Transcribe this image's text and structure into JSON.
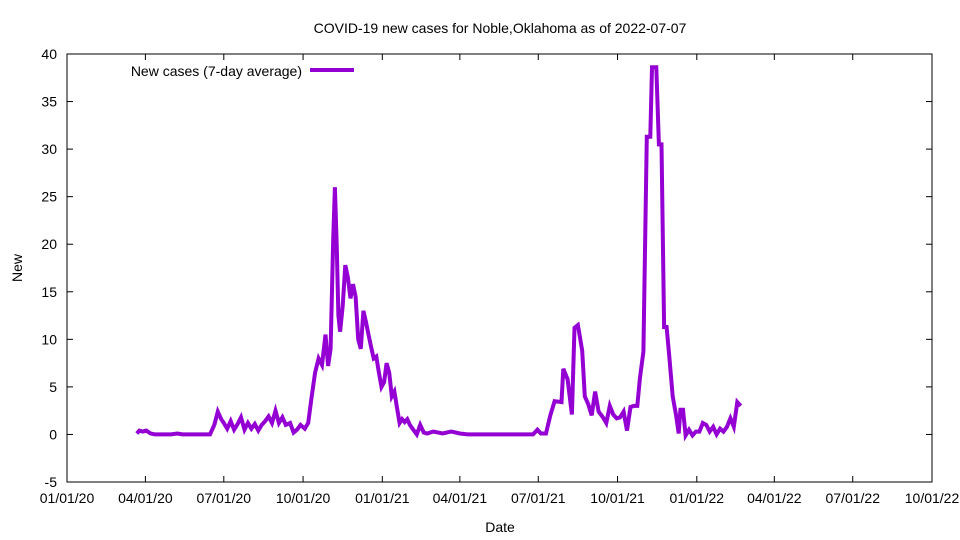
{
  "chart_data": {
    "type": "line",
    "title": "COVID-19 new cases for Noble,Oklahoma as of 2022-07-07",
    "xlabel": "Date",
    "ylabel": "New",
    "grid": false,
    "legend_position": "top-left",
    "x_axis": {
      "type": "time",
      "range": [
        "2020-01-01",
        "2022-10-01"
      ],
      "ticks": [
        {
          "date": "2020-01-01",
          "label": "01/01/20"
        },
        {
          "date": "2020-04-01",
          "label": "04/01/20"
        },
        {
          "date": "2020-07-01",
          "label": "07/01/20"
        },
        {
          "date": "2020-10-01",
          "label": "10/01/20"
        },
        {
          "date": "2021-01-01",
          "label": "01/01/21"
        },
        {
          "date": "2021-04-01",
          "label": "04/01/21"
        },
        {
          "date": "2021-07-01",
          "label": "07/01/21"
        },
        {
          "date": "2021-10-01",
          "label": "10/01/21"
        },
        {
          "date": "2022-01-01",
          "label": "01/01/22"
        },
        {
          "date": "2022-04-01",
          "label": "04/01/22"
        },
        {
          "date": "2022-07-01",
          "label": "07/01/22"
        },
        {
          "date": "2022-10-01",
          "label": "10/01/22"
        }
      ]
    },
    "y_axis": {
      "range": [
        -5,
        40
      ],
      "ticks": [
        {
          "value": -5,
          "label": "-5"
        },
        {
          "value": 0,
          "label": "0"
        },
        {
          "value": 5,
          "label": "5"
        },
        {
          "value": 10,
          "label": "10"
        },
        {
          "value": 15,
          "label": "15"
        },
        {
          "value": 20,
          "label": "20"
        },
        {
          "value": 25,
          "label": "25"
        },
        {
          "value": 30,
          "label": "30"
        },
        {
          "value": 35,
          "label": "35"
        },
        {
          "value": 40,
          "label": "40"
        }
      ]
    },
    "series": [
      {
        "name": "New cases (7-day average)",
        "color": "#9400d3",
        "points": [
          [
            "2020-03-22",
            0.1
          ],
          [
            "2020-03-25",
            0.4
          ],
          [
            "2020-03-29",
            0.3
          ],
          [
            "2020-04-02",
            0.4
          ],
          [
            "2020-04-07",
            0.1
          ],
          [
            "2020-04-12",
            0.0
          ],
          [
            "2020-05-01",
            0.0
          ],
          [
            "2020-05-08",
            0.1
          ],
          [
            "2020-05-14",
            0.0
          ],
          [
            "2020-06-15",
            0.0
          ],
          [
            "2020-06-20",
            1.0
          ],
          [
            "2020-06-24",
            2.4
          ],
          [
            "2020-06-28",
            1.6
          ],
          [
            "2020-07-01",
            1.2
          ],
          [
            "2020-07-05",
            0.6
          ],
          [
            "2020-07-09",
            1.4
          ],
          [
            "2020-07-13",
            0.5
          ],
          [
            "2020-07-17",
            1.1
          ],
          [
            "2020-07-21",
            1.8
          ],
          [
            "2020-07-25",
            0.5
          ],
          [
            "2020-07-29",
            1.2
          ],
          [
            "2020-08-02",
            0.6
          ],
          [
            "2020-08-06",
            1.1
          ],
          [
            "2020-08-10",
            0.4
          ],
          [
            "2020-08-14",
            1.0
          ],
          [
            "2020-08-18",
            1.4
          ],
          [
            "2020-08-22",
            1.9
          ],
          [
            "2020-08-26",
            1.2
          ],
          [
            "2020-08-30",
            2.5
          ],
          [
            "2020-09-03",
            1.2
          ],
          [
            "2020-09-07",
            1.8
          ],
          [
            "2020-09-11",
            1.0
          ],
          [
            "2020-09-16",
            1.2
          ],
          [
            "2020-09-20",
            0.2
          ],
          [
            "2020-09-24",
            0.5
          ],
          [
            "2020-09-28",
            1.0
          ],
          [
            "2020-10-03",
            0.6
          ],
          [
            "2020-10-07",
            1.2
          ],
          [
            "2020-10-11",
            4.0
          ],
          [
            "2020-10-15",
            6.5
          ],
          [
            "2020-10-19",
            8.0
          ],
          [
            "2020-10-23",
            7.3
          ],
          [
            "2020-10-27",
            10.5
          ],
          [
            "2020-10-30",
            7.2
          ],
          [
            "2020-11-02",
            9.0
          ],
          [
            "2020-11-05",
            20.5
          ],
          [
            "2020-11-07",
            26.0
          ],
          [
            "2020-11-09",
            20.0
          ],
          [
            "2020-11-11",
            12.5
          ],
          [
            "2020-11-13",
            10.8
          ],
          [
            "2020-11-16",
            13.5
          ],
          [
            "2020-11-19",
            17.8
          ],
          [
            "2020-11-22",
            16.5
          ],
          [
            "2020-11-25",
            14.3
          ],
          [
            "2020-11-28",
            15.8
          ],
          [
            "2020-12-01",
            14.5
          ],
          [
            "2020-12-04",
            10.0
          ],
          [
            "2020-12-07",
            9.0
          ],
          [
            "2020-12-10",
            13.0
          ],
          [
            "2020-12-13",
            11.8
          ],
          [
            "2020-12-16",
            10.5
          ],
          [
            "2020-12-19",
            9.2
          ],
          [
            "2020-12-22",
            8.0
          ],
          [
            "2020-12-25",
            8.2
          ],
          [
            "2020-12-28",
            6.5
          ],
          [
            "2020-12-31",
            5.0
          ],
          [
            "2021-01-03",
            5.5
          ],
          [
            "2021-01-06",
            7.5
          ],
          [
            "2021-01-09",
            6.5
          ],
          [
            "2021-01-12",
            4.0
          ],
          [
            "2021-01-15",
            4.5
          ],
          [
            "2021-01-18",
            2.8
          ],
          [
            "2021-01-21",
            1.2
          ],
          [
            "2021-01-24",
            1.6
          ],
          [
            "2021-01-27",
            1.3
          ],
          [
            "2021-01-30",
            1.6
          ],
          [
            "2021-02-02",
            1.0
          ],
          [
            "2021-02-06",
            0.5
          ],
          [
            "2021-02-10",
            0.0
          ],
          [
            "2021-02-14",
            1.0
          ],
          [
            "2021-02-18",
            0.2
          ],
          [
            "2021-02-22",
            0.1
          ],
          [
            "2021-03-01",
            0.3
          ],
          [
            "2021-03-12",
            0.1
          ],
          [
            "2021-03-22",
            0.3
          ],
          [
            "2021-04-01",
            0.1
          ],
          [
            "2021-04-10",
            0.0
          ],
          [
            "2021-06-25",
            0.0
          ],
          [
            "2021-06-30",
            0.5
          ],
          [
            "2021-07-04",
            0.1
          ],
          [
            "2021-07-10",
            0.1
          ],
          [
            "2021-07-15",
            2.0
          ],
          [
            "2021-07-20",
            3.5
          ],
          [
            "2021-07-28",
            3.4
          ],
          [
            "2021-07-30",
            6.9
          ],
          [
            "2021-08-04",
            5.8
          ],
          [
            "2021-08-09",
            2.1
          ],
          [
            "2021-08-12",
            11.2
          ],
          [
            "2021-08-16",
            11.5
          ],
          [
            "2021-08-21",
            8.8
          ],
          [
            "2021-08-24",
            4.0
          ],
          [
            "2021-08-28",
            3.2
          ],
          [
            "2021-09-01",
            2.0
          ],
          [
            "2021-09-05",
            4.5
          ],
          [
            "2021-09-09",
            2.4
          ],
          [
            "2021-09-14",
            1.8
          ],
          [
            "2021-09-18",
            1.2
          ],
          [
            "2021-09-22",
            3.0
          ],
          [
            "2021-09-26",
            2.1
          ],
          [
            "2021-09-30",
            1.7
          ],
          [
            "2021-10-04",
            1.8
          ],
          [
            "2021-10-08",
            2.4
          ],
          [
            "2021-10-12",
            0.4
          ],
          [
            "2021-10-16",
            2.9
          ],
          [
            "2021-10-20",
            3.0
          ],
          [
            "2021-10-24",
            3.0
          ],
          [
            "2021-10-27",
            5.9
          ],
          [
            "2021-10-31",
            8.7
          ],
          [
            "2021-11-04",
            31.3
          ],
          [
            "2021-11-08",
            31.3
          ],
          [
            "2021-11-10",
            38.6
          ],
          [
            "2021-11-15",
            38.6
          ],
          [
            "2021-11-18",
            30.5
          ],
          [
            "2021-11-21",
            30.5
          ],
          [
            "2021-11-24",
            11.3
          ],
          [
            "2021-11-27",
            11.3
          ],
          [
            "2021-11-30",
            8.3
          ],
          [
            "2021-12-04",
            4.0
          ],
          [
            "2021-12-08",
            2.0
          ],
          [
            "2021-12-11",
            0.1
          ],
          [
            "2021-12-13",
            2.6
          ],
          [
            "2021-12-16",
            2.6
          ],
          [
            "2021-12-19",
            -0.1
          ],
          [
            "2021-12-23",
            0.5
          ],
          [
            "2021-12-27",
            -0.1
          ],
          [
            "2021-12-31",
            0.3
          ],
          [
            "2022-01-04",
            0.3
          ],
          [
            "2022-01-08",
            1.2
          ],
          [
            "2022-01-12",
            1.0
          ],
          [
            "2022-01-16",
            0.3
          ],
          [
            "2022-01-20",
            0.8
          ],
          [
            "2022-01-24",
            0.0
          ],
          [
            "2022-01-28",
            0.6
          ],
          [
            "2022-02-01",
            0.3
          ],
          [
            "2022-02-05",
            0.8
          ],
          [
            "2022-02-09",
            1.7
          ],
          [
            "2022-02-13",
            0.8
          ],
          [
            "2022-02-17",
            3.4
          ],
          [
            "2022-02-21",
            3.0
          ]
        ]
      }
    ]
  }
}
